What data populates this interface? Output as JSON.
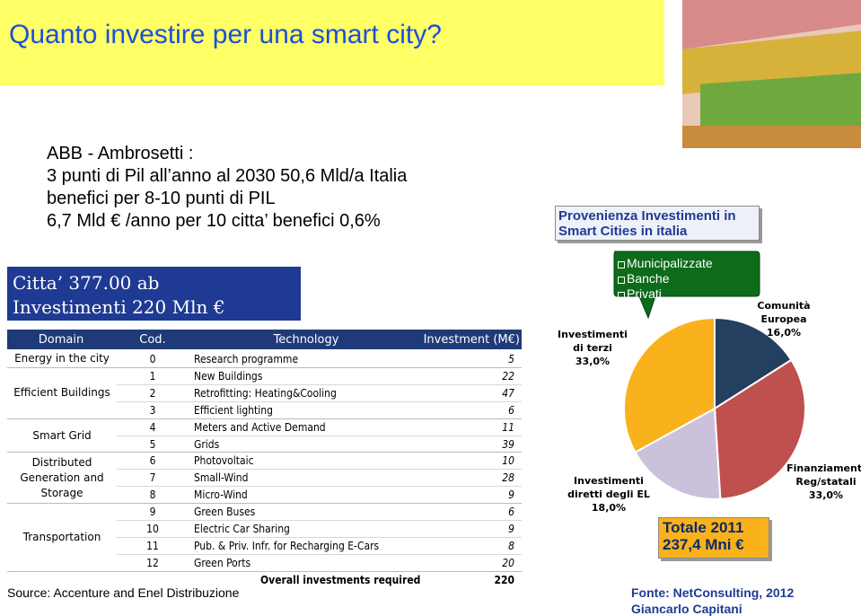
{
  "title": "Quanto investire per una smart city?",
  "intro": [
    "ABB - Ambrosetti :",
    "3 punti di Pil all’anno  al 2030 50,6 Mld/a Italia",
    "benefici per 8-10 punti di PIL",
    "6,7 Mld € /anno per 10 citta’  benefici 0,6%"
  ],
  "callout": [
    "Citta’ 377.00 ab",
    "Investimenti  220 Mln €"
  ],
  "table": {
    "headers": [
      "Domain",
      "Cod.",
      "Technology",
      "Investment (M€)"
    ],
    "groups": [
      {
        "domain": "Energy in the city",
        "rows": [
          [
            0,
            "Research programme",
            5
          ]
        ]
      },
      {
        "domain": "Efficient Buildings",
        "rows": [
          [
            1,
            "New Buildings",
            22
          ],
          [
            2,
            "Retrofitting: Heating&Cooling",
            47
          ],
          [
            3,
            "Efficient lighting",
            6
          ]
        ]
      },
      {
        "domain": "Smart Grid",
        "rows": [
          [
            4,
            "Meters and Active Demand",
            11
          ],
          [
            5,
            "Grids",
            39
          ]
        ]
      },
      {
        "domain": "Distributed Generation and Storage",
        "rows": [
          [
            6,
            "Photovoltaic",
            10
          ],
          [
            7,
            "Small-Wind",
            28
          ],
          [
            8,
            "Micro-Wind",
            9
          ]
        ]
      },
      {
        "domain": "Transportation",
        "rows": [
          [
            9,
            "Green Buses",
            6
          ],
          [
            10,
            "Electric Car Sharing",
            9
          ],
          [
            11,
            "Pub. & Priv. Infr. for Recharging E-Cars",
            8
          ],
          [
            12,
            "Green Ports",
            20
          ]
        ]
      }
    ],
    "total_label": "Overall investments required",
    "total": 220
  },
  "source": "Source: Accenture and Enel Distribuzione",
  "chart_data": {
    "type": "pie",
    "title": "Provenienza Investimenti in Smart Cities in italia",
    "categories": [
      "Comunità Europea",
      "Finanziamenti Reg/statali",
      "Investimenti diretti degli EL",
      "Investimenti di terzi"
    ],
    "values": [
      16,
      33,
      18,
      33
    ],
    "value_labels": [
      "16,0%",
      "33,0%",
      "18,0%",
      "33,0%"
    ],
    "colors": [
      "#243f60",
      "#c0504d",
      "#ccc1da",
      "#f9b21c"
    ]
  },
  "bullets": [
    "Municipalizzate",
    "Banche",
    "Privati"
  ],
  "total_box": [
    "Totale 2011",
    "237,4 Mni €"
  ],
  "footer": [
    "Fonte: NetConsulting, 2012",
    "Giancarlo Capitani"
  ]
}
